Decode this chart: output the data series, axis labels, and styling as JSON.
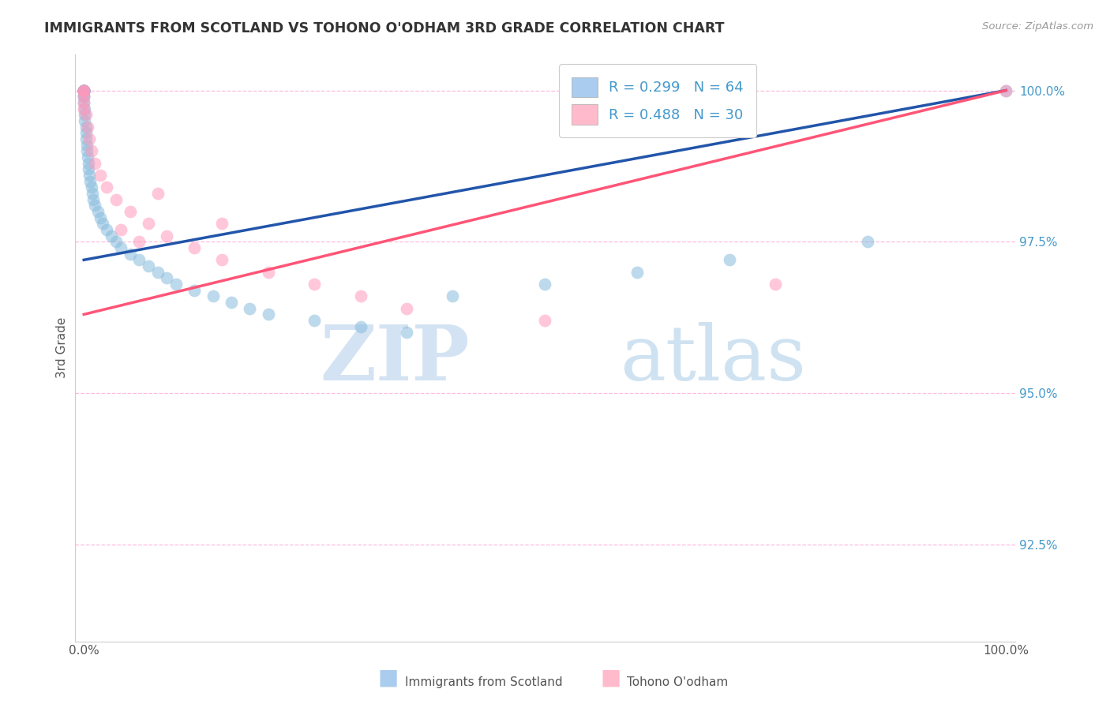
{
  "title": "IMMIGRANTS FROM SCOTLAND VS TOHONO O'ODHAM 3RD GRADE CORRELATION CHART",
  "source": "Source: ZipAtlas.com",
  "ylabel": "3rd Grade",
  "color_blue": "#88BBDD",
  "color_pink": "#FF99BB",
  "trendline_blue_color": "#2255AA",
  "trendline_pink_color": "#FF5577",
  "watermark_zip": "ZIP",
  "watermark_atlas": "atlas",
  "legend_labels": [
    "R = 0.299   N = 64",
    "R = 0.488   N = 30"
  ],
  "legend_patch_blue": "#AACCEE",
  "legend_patch_pink": "#FFBBCC",
  "bottom_legend_blue": "Immigrants from Scotland",
  "bottom_legend_pink": "Tohono O'odham",
  "yticks": [
    0.925,
    0.95,
    0.975,
    1.0
  ],
  "ytick_labels": [
    "92.5%",
    "95.0%",
    "97.5%",
    "100.0%"
  ],
  "xticks": [
    0.0,
    1.0
  ],
  "xtick_labels": [
    "0.0%",
    "100.0%"
  ],
  "xlim": [
    -0.01,
    1.01
  ],
  "ylim": [
    0.909,
    1.006
  ],
  "blue_x": [
    0.0,
    0.0,
    0.0,
    0.0,
    0.0,
    0.0,
    0.0,
    0.0,
    0.0,
    0.0,
    0.0,
    0.0,
    0.0,
    0.0,
    0.0,
    0.0,
    0.0,
    0.0,
    0.0,
    0.0,
    0.001,
    0.001,
    0.001,
    0.002,
    0.002,
    0.002,
    0.003,
    0.003,
    0.004,
    0.005,
    0.005,
    0.006,
    0.007,
    0.008,
    0.009,
    0.01,
    0.012,
    0.015,
    0.018,
    0.02,
    0.025,
    0.03,
    0.035,
    0.04,
    0.05,
    0.06,
    0.07,
    0.08,
    0.09,
    0.1,
    0.12,
    0.14,
    0.16,
    0.18,
    0.2,
    0.25,
    0.3,
    0.35,
    0.4,
    0.5,
    0.6,
    0.7,
    0.85,
    1.0
  ],
  "blue_y": [
    1.0,
    1.0,
    1.0,
    1.0,
    1.0,
    1.0,
    1.0,
    1.0,
    1.0,
    1.0,
    1.0,
    1.0,
    1.0,
    1.0,
    1.0,
    1.0,
    1.0,
    0.999,
    0.999,
    0.998,
    0.997,
    0.996,
    0.995,
    0.994,
    0.993,
    0.992,
    0.991,
    0.99,
    0.989,
    0.988,
    0.987,
    0.986,
    0.985,
    0.984,
    0.983,
    0.982,
    0.981,
    0.98,
    0.979,
    0.978,
    0.977,
    0.976,
    0.975,
    0.974,
    0.973,
    0.972,
    0.971,
    0.97,
    0.969,
    0.968,
    0.967,
    0.966,
    0.965,
    0.964,
    0.963,
    0.962,
    0.961,
    0.96,
    0.966,
    0.968,
    0.97,
    0.972,
    0.975,
    1.0
  ],
  "pink_x": [
    0.0,
    0.0,
    0.0,
    0.0,
    0.0,
    0.0,
    0.002,
    0.004,
    0.006,
    0.008,
    0.012,
    0.018,
    0.025,
    0.035,
    0.05,
    0.07,
    0.09,
    0.12,
    0.15,
    0.2,
    0.25,
    0.3,
    0.35,
    0.15,
    0.08,
    0.06,
    0.04,
    0.5,
    0.75,
    1.0
  ],
  "pink_y": [
    1.0,
    1.0,
    1.0,
    0.999,
    0.998,
    0.997,
    0.996,
    0.994,
    0.992,
    0.99,
    0.988,
    0.986,
    0.984,
    0.982,
    0.98,
    0.978,
    0.976,
    0.974,
    0.972,
    0.97,
    0.968,
    0.966,
    0.964,
    0.978,
    0.983,
    0.975,
    0.977,
    0.962,
    0.968,
    1.0
  ],
  "blue_trend_x": [
    0.0,
    1.0
  ],
  "blue_trend_y": [
    0.972,
    1.0
  ],
  "pink_trend_x": [
    0.0,
    1.0
  ],
  "pink_trend_y": [
    0.963,
    1.0
  ]
}
